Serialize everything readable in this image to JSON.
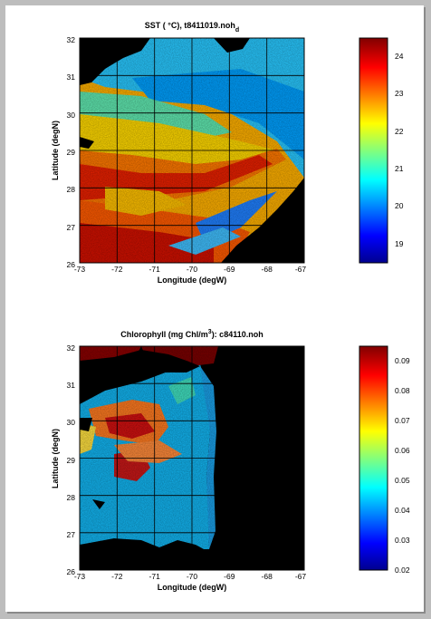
{
  "panels": [
    {
      "title": "SST ( °C), t8411019.noh",
      "title_subscript": "d",
      "xlabel": "Longitude (degW)",
      "ylabel": "Latitude (degN)",
      "xticks": [
        "-73",
        "-72",
        "-71",
        "-70",
        "-69",
        "-68",
        "-67"
      ],
      "yticks": [
        "32",
        "31",
        "30",
        "29",
        "28",
        "27",
        "26"
      ],
      "colorbar_ticks": [
        "24",
        "23",
        "22",
        "21",
        "20",
        "19"
      ],
      "colorbar_range": [
        18.5,
        24.5
      ]
    },
    {
      "title": "Chlorophyll (mg Chl/m",
      "title_superscript": "3",
      "title_suffix": "): c84110.noh",
      "xlabel": "Longitude (degW)",
      "ylabel": "Latitude (degN)",
      "xticks": [
        "-73",
        "-72",
        "-71",
        "-70",
        "-69",
        "-68",
        "-67"
      ],
      "yticks": [
        "32",
        "31",
        "30",
        "29",
        "28",
        "27",
        "26"
      ],
      "colorbar_ticks": [
        "0.09",
        "0.08",
        "0.07",
        "0.06",
        "0.05",
        "0.04",
        "0.03",
        "0.02"
      ],
      "colorbar_range": [
        0.02,
        0.095
      ]
    }
  ],
  "colormap": [
    "#00008f",
    "#0000ff",
    "#0080ff",
    "#00ffff",
    "#80ff80",
    "#ffff00",
    "#ff8000",
    "#ff0000",
    "#800000"
  ]
}
